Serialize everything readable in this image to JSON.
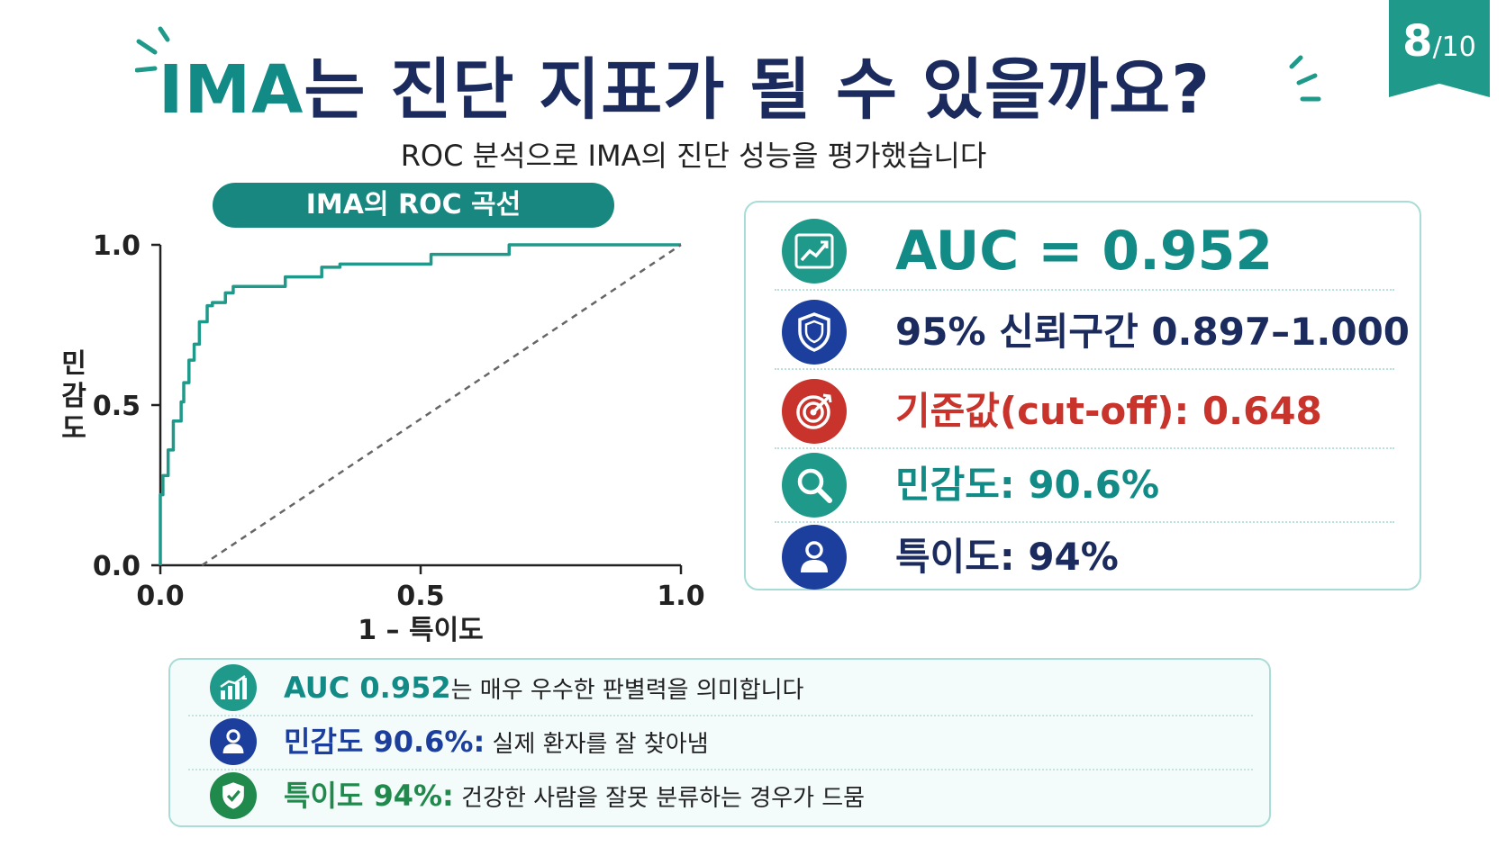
{
  "page": {
    "badge_number": "8",
    "badge_total": "/10"
  },
  "header": {
    "title_accent": "IMA",
    "title_rest": "는 진단 지표가 될 수 있을까요?",
    "subtitle": "ROC 분석으로 IMA의 진단 성능을 평가했습니다"
  },
  "chart_data": {
    "type": "line",
    "title": "IMA의 ROC 곡선",
    "xlabel": "1 – 특이도",
    "ylabel": "민감도",
    "xlim": [
      0,
      1
    ],
    "ylim": [
      0,
      1
    ],
    "xticks": [
      "0.0",
      "0.5",
      "1.0"
    ],
    "yticks": [
      "0.0",
      "0.5",
      "1.0"
    ],
    "grid": false,
    "series": [
      {
        "name": "",
        "color": "#1f9a8a",
        "x": [
          0.0,
          0.0,
          0.005,
          0.005,
          0.015,
          0.015,
          0.025,
          0.025,
          0.04,
          0.04,
          0.045,
          0.045,
          0.055,
          0.055,
          0.065,
          0.065,
          0.075,
          0.075,
          0.09,
          0.09,
          0.1,
          0.1,
          0.125,
          0.125,
          0.14,
          0.14,
          0.16,
          0.16,
          0.24,
          0.24,
          0.31,
          0.31,
          0.345,
          0.345,
          0.52,
          0.52,
          0.67,
          0.67,
          1.0
        ],
        "y": [
          0.0,
          0.22,
          0.22,
          0.28,
          0.28,
          0.36,
          0.36,
          0.45,
          0.45,
          0.51,
          0.51,
          0.57,
          0.57,
          0.64,
          0.64,
          0.69,
          0.69,
          0.76,
          0.76,
          0.81,
          0.81,
          0.82,
          0.82,
          0.85,
          0.85,
          0.87,
          0.87,
          0.87,
          0.87,
          0.9,
          0.9,
          0.93,
          0.93,
          0.94,
          0.94,
          0.97,
          0.97,
          1.0,
          1.0
        ]
      },
      {
        "name": "",
        "color": "#666666",
        "dashed": true,
        "x": [
          0.08,
          1.0
        ],
        "y": [
          0.0,
          1.0
        ]
      }
    ]
  },
  "results": {
    "auc": "AUC = 0.952",
    "ci": "95% 신뢰구간 0.897–1.000",
    "cutoff": "기준값(cut-off): 0.648",
    "sensitivity": "민감도: 90.6%",
    "specificity": "특이도: 94%"
  },
  "summary": {
    "auc_lead": "AUC 0.952",
    "auc_text": "는 매우 우수한 판별력을 의미합니다",
    "sens_lead": "민감도 90.6%:",
    "sens_text": " 실제 환자를 잘 찾아냄",
    "spec_lead": "특이도 94%:",
    "spec_text": " 건강한 사람을 잘못 분류하는 경우가 드뭄"
  },
  "colors": {
    "teal": "#128a85",
    "navy": "#1b2b5e",
    "red": "#c8342c",
    "green": "#1f8a4c",
    "blue": "#1c3f9e"
  },
  "icons": [
    "trend-chart-icon",
    "shield-icon",
    "target-icon",
    "search-icon",
    "person-icon",
    "bar-chart-icon",
    "shield-check-icon"
  ]
}
